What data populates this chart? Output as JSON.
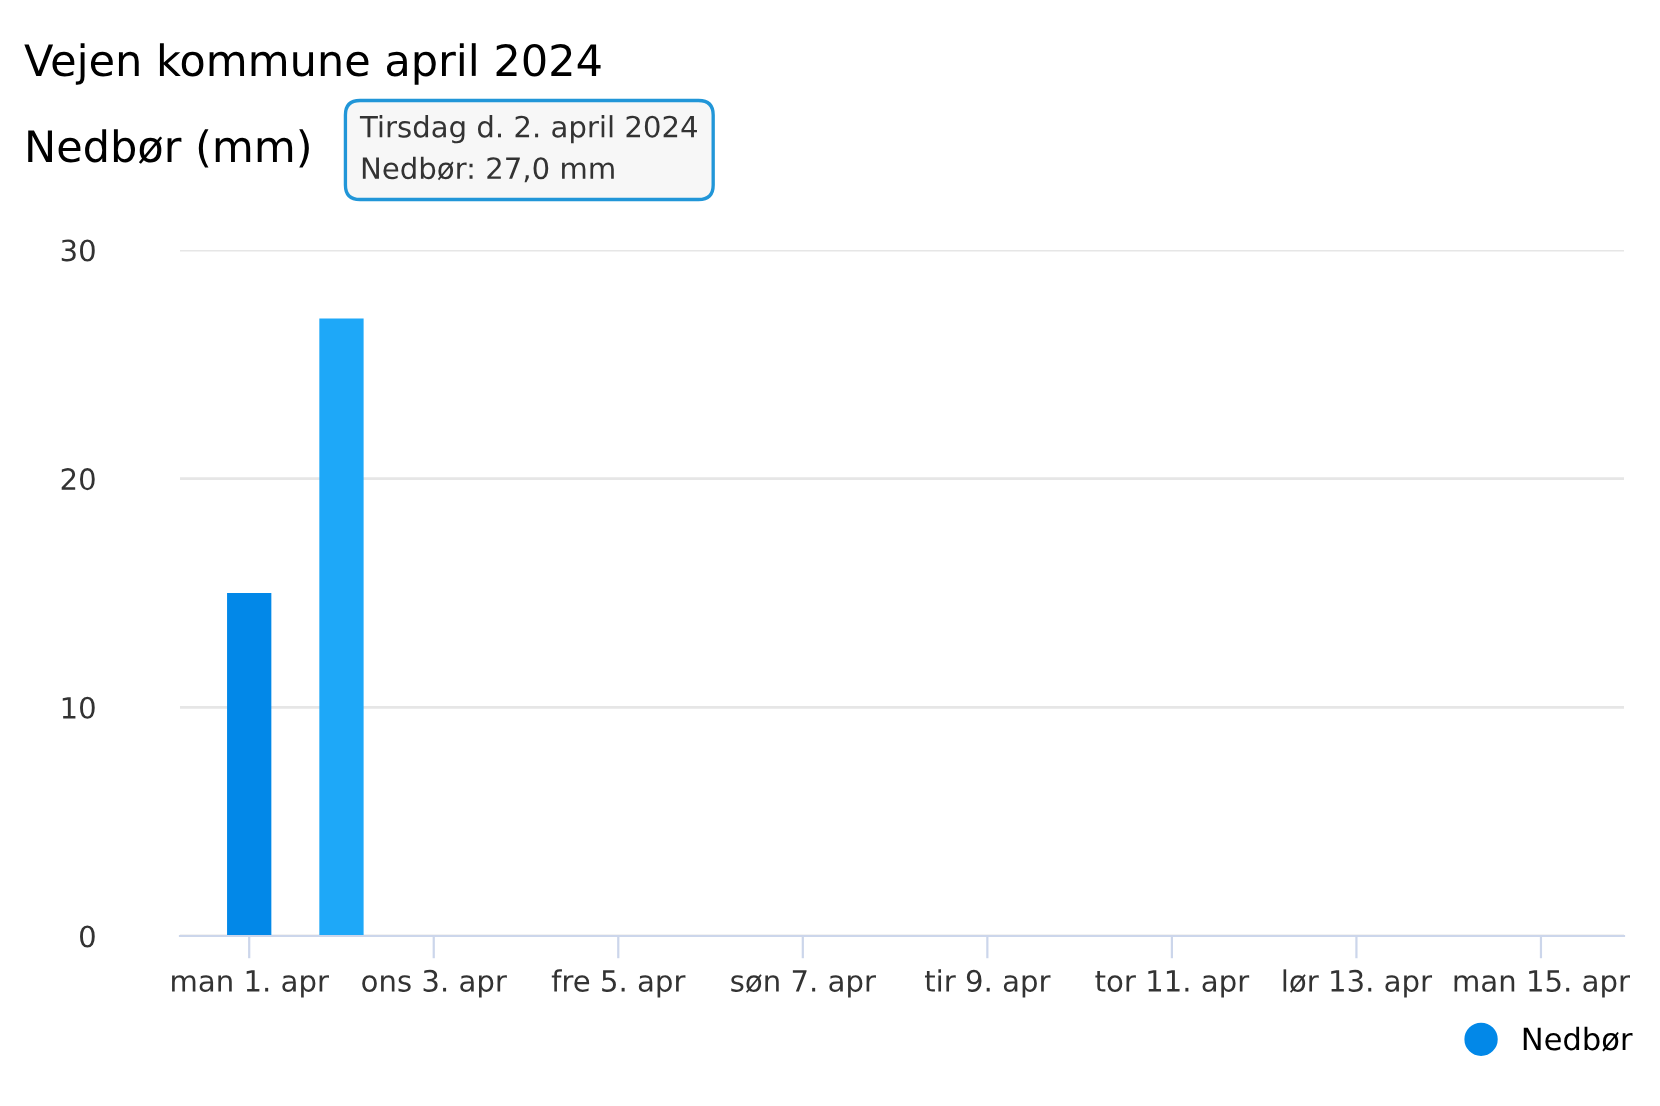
{
  "chart_data": {
    "type": "bar",
    "title": "Vejen kommune april 2024",
    "ylabel": "Nedbør (mm)",
    "categories": [
      "man 1. apr",
      null,
      "ons 3. apr",
      null,
      "fre 5. apr",
      null,
      "søn 7. apr",
      null,
      "tir 9. apr",
      null,
      "tor 11. apr",
      null,
      "lør 13. apr",
      null,
      "man 15. apr"
    ],
    "series": [
      {
        "name": "Nedbør",
        "color": "#0288e8",
        "colors": [
          "#0288e8",
          "#1ea8f8",
          "#0288e8",
          "#0288e8",
          "#0288e8",
          "#0288e8",
          "#0288e8",
          "#0288e8",
          "#0288e8",
          "#0288e8",
          "#0288e8",
          "#0288e8",
          "#0288e8",
          "#0288e8",
          "#0288e8"
        ],
        "values": [
          15,
          27,
          0,
          0,
          0,
          0,
          0,
          0,
          0,
          0,
          0,
          0,
          0,
          0,
          0
        ]
      }
    ],
    "ylim": [
      0,
      30
    ],
    "yticks": [
      0,
      10,
      20,
      30
    ],
    "grid": "y",
    "legend": "bottom right",
    "annotations": [
      "Tirsdag d. 2. april 2024\nNedbør: 27,0 mm"
    ]
  }
}
